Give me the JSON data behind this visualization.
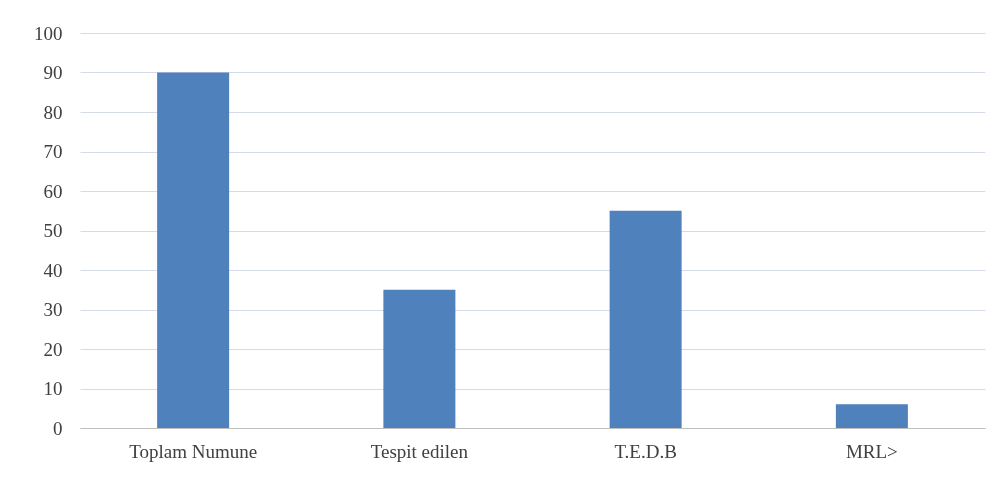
{
  "chart_data": {
    "type": "bar",
    "categories": [
      "Toplam Numune",
      "Tespit edilen",
      "T.E.D.B",
      "MRL>"
    ],
    "values": [
      90,
      35,
      55,
      6
    ],
    "color": "#4f81bd",
    "ylim": [
      0,
      100
    ],
    "yticks": [
      0,
      10,
      20,
      30,
      40,
      50,
      60,
      70,
      80,
      90,
      100
    ],
    "grid": "y"
  }
}
